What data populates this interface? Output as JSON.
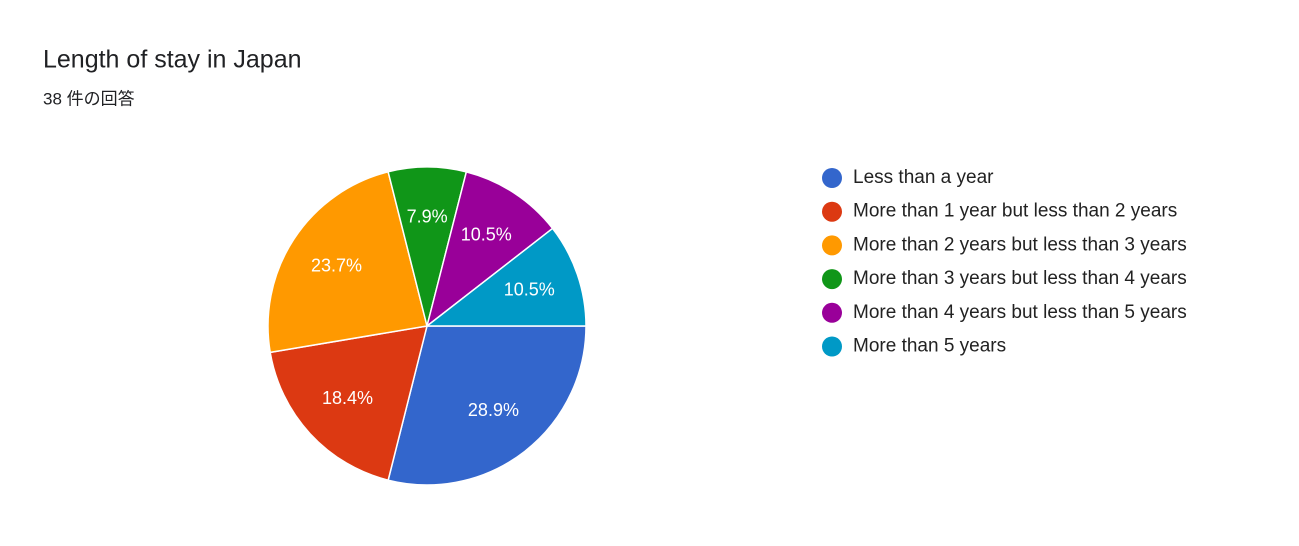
{
  "chart_data": {
    "type": "pie",
    "title": "Length of stay in Japan",
    "subtitle": "38 件の回答",
    "categories": [
      "Less than a year",
      "More than 1 year but less than 2 years",
      "More than 2 years but less than 3 years",
      "More than 3 years but less than 4 years",
      "More than 4 years but less than 5 years",
      "More than 5 years"
    ],
    "values": [
      28.9,
      18.4,
      23.7,
      7.9,
      10.5,
      10.5
    ],
    "value_labels": [
      "28.9%",
      "18.4%",
      "23.7%",
      "7.9%",
      "10.5%",
      "10.5%"
    ],
    "colors": [
      "#3366cc",
      "#dc3912",
      "#ff9900",
      "#109618",
      "#990099",
      "#0099c6"
    ],
    "legend": "right"
  }
}
